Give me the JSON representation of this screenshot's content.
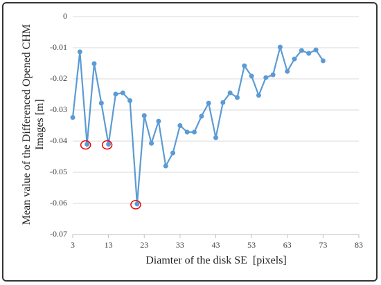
{
  "chart_data": {
    "type": "line",
    "xlabel": "Diamter of the disk SE  [pixels]",
    "ylabel": "Mean value of the Differenced Opened CHM Images [m]",
    "x": [
      3,
      5,
      7,
      9,
      11,
      13,
      15,
      17,
      19,
      21,
      23,
      25,
      27,
      29,
      31,
      33,
      35,
      37,
      39,
      41,
      43,
      45,
      47,
      49,
      51,
      53,
      55,
      57,
      59,
      61,
      63,
      65,
      67,
      69,
      71,
      73
    ],
    "series": [
      {
        "color": "#5b9bd5",
        "values": [
          -0.0324,
          -0.0113,
          -0.041,
          -0.0151,
          -0.0278,
          -0.041,
          -0.0249,
          -0.0245,
          -0.027,
          -0.0602,
          -0.0318,
          -0.0407,
          -0.0336,
          -0.048,
          -0.0438,
          -0.035,
          -0.0371,
          -0.0371,
          -0.032,
          -0.0278,
          -0.0389,
          -0.0276,
          -0.0245,
          -0.026,
          -0.0158,
          -0.0191,
          -0.0253,
          -0.0196,
          -0.0187,
          -0.0098,
          -0.0176,
          -0.0136,
          -0.0109,
          -0.0118,
          -0.0107,
          -0.0142
        ]
      }
    ],
    "xlim": [
      3,
      83
    ],
    "xticks": [
      3,
      13,
      23,
      33,
      43,
      53,
      63,
      73,
      83
    ],
    "ylim": [
      -0.07,
      0
    ],
    "yticks": [
      0,
      -0.01,
      -0.02,
      -0.03,
      -0.04,
      -0.05,
      -0.06,
      -0.07
    ],
    "grid": true
  }
}
